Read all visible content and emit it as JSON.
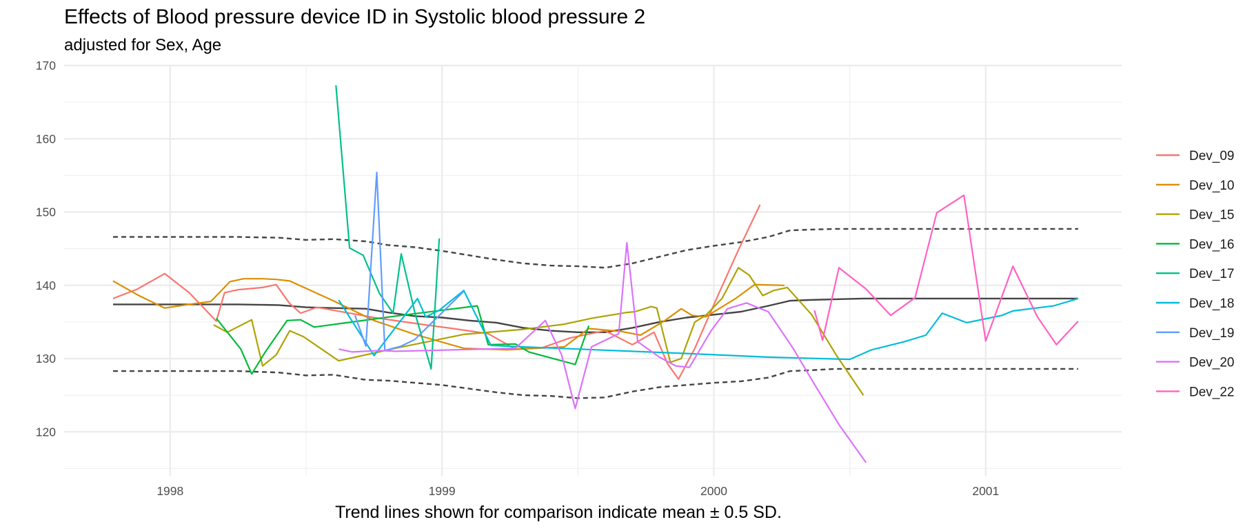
{
  "chart_data": {
    "type": "line",
    "title": "Effects of Blood pressure device ID in Systolic blood pressure 2",
    "subtitle": "adjusted for Sex, Age",
    "caption": "Trend lines shown for comparison indicate mean ± 0.5 SD.",
    "xlabel": "",
    "ylabel": "",
    "xlim": [
      1997.61,
      2001.5
    ],
    "ylim": [
      114,
      170
    ],
    "x_ticks": [
      1998,
      1999,
      2000,
      2001
    ],
    "x_tick_labels": [
      "1998",
      "1999",
      "2000",
      "2001"
    ],
    "y_ticks": [
      120,
      130,
      140,
      150,
      160,
      170
    ],
    "y_tick_labels": [
      "120",
      "130",
      "140",
      "150",
      "160",
      "170"
    ],
    "grid": true,
    "legend_position": "right",
    "series": [
      {
        "name": "Dev_09",
        "color": "#F8766D",
        "x": [
          1997.79,
          1997.88,
          1997.98,
          1998.07,
          1998.17,
          1998.2,
          1998.25,
          1998.34,
          1998.39,
          1998.44,
          1998.48,
          1998.54,
          1998.75,
          1998.94,
          1999.04,
          1999.17,
          1999.27,
          1999.37,
          1999.47,
          1999.6,
          1999.7,
          1999.78,
          1999.83,
          1999.87,
          1999.93,
          2000.01,
          2000.09,
          2000.17
        ],
        "y": [
          138.2,
          139.5,
          141.6,
          139.0,
          135.1,
          139.0,
          139.4,
          139.7,
          140.1,
          137.5,
          136.2,
          137.0,
          135.6,
          134.6,
          134.1,
          133.4,
          131.3,
          131.5,
          132.8,
          133.8,
          131.9,
          133.6,
          129.3,
          127.2,
          131.4,
          138.2,
          144.8,
          151.0
        ]
      },
      {
        "name": "Dev_10",
        "color": "#DB8E00",
        "x": [
          1997.79,
          1997.88,
          1997.98,
          1998.07,
          1998.15,
          1998.22,
          1998.27,
          1998.34,
          1998.39,
          1998.44,
          1998.6,
          1998.75,
          1998.9,
          1999.08,
          1999.24,
          1999.45,
          1999.54,
          1999.66,
          1999.73,
          1999.82,
          1999.88,
          1999.92,
          1999.97,
          2000.08,
          2000.15,
          2000.26
        ],
        "y": [
          140.6,
          138.7,
          136.9,
          137.4,
          137.8,
          140.5,
          140.9,
          140.9,
          140.8,
          140.6,
          137.9,
          135.2,
          133.3,
          131.4,
          131.2,
          131.6,
          134.1,
          133.7,
          133.2,
          135.2,
          136.8,
          135.9,
          135.7,
          138.2,
          140.1,
          140.0
        ]
      },
      {
        "name": "Dev_15",
        "color": "#AEA200",
        "x": [
          1998.16,
          1998.21,
          1998.3,
          1998.34,
          1998.39,
          1998.44,
          1998.49,
          1998.62,
          1998.84,
          1999.08,
          1999.3,
          1999.45,
          1999.55,
          1999.68,
          1999.71,
          1999.77,
          1999.79,
          1999.84,
          1999.88,
          1999.93,
          1999.97,
          2000.03,
          2000.09,
          2000.13,
          2000.18,
          2000.22,
          2000.27,
          2000.36,
          2000.45,
          2000.55
        ],
        "y": [
          134.6,
          133.6,
          135.3,
          129.0,
          130.5,
          133.8,
          133.0,
          129.7,
          131.5,
          133.3,
          134.0,
          134.7,
          135.5,
          136.3,
          136.4,
          137.1,
          136.9,
          129.5,
          130.0,
          135.0,
          135.9,
          138.2,
          142.4,
          141.4,
          138.6,
          139.3,
          139.7,
          136.0,
          130.5,
          125.0
        ]
      },
      {
        "name": "Dev_16",
        "color": "#00BA38",
        "x": [
          1998.17,
          1998.26,
          1998.3,
          1998.35,
          1998.43,
          1998.48,
          1998.53,
          1998.85,
          1999.13,
          1999.17,
          1999.27,
          1999.32,
          1999.39,
          1999.49,
          1999.54
        ],
        "y": [
          135.5,
          131.3,
          127.9,
          130.9,
          135.2,
          135.3,
          134.3,
          135.9,
          137.2,
          131.9,
          132.0,
          130.9,
          130.2,
          129.2,
          134.5
        ]
      },
      {
        "name": "Dev_17",
        "color": "#00C08B",
        "x": [
          1998.61,
          1998.66,
          1998.71,
          1998.77,
          1998.82,
          1998.85,
          1998.9,
          1998.96,
          1998.99
        ],
        "y": [
          167.3,
          145.1,
          144.1,
          138.9,
          136.2,
          144.3,
          136.3,
          128.6,
          146.4
        ]
      },
      {
        "name": "Dev_18",
        "color": "#00BCD8",
        "x": [
          1998.62,
          1998.75,
          1998.91,
          1998.94,
          1998.99,
          1999.08,
          1999.18,
          1999.3,
          1999.5,
          1999.9,
          2000.2,
          2000.5,
          2000.58,
          2000.7,
          2000.78,
          2000.84,
          2000.93,
          2001.06,
          2001.1,
          2001.25,
          2001.34
        ],
        "y": [
          138.0,
          130.4,
          138.2,
          135.7,
          136.6,
          139.3,
          131.8,
          131.6,
          131.3,
          130.7,
          130.2,
          129.9,
          131.2,
          132.3,
          133.2,
          136.2,
          134.9,
          135.9,
          136.5,
          137.2,
          138.2
        ]
      },
      {
        "name": "Dev_19",
        "color": "#619CFF",
        "x": [
          1998.68,
          1998.72,
          1998.76,
          1998.79,
          1998.85,
          1998.9,
          1999.08
        ],
        "y": [
          135.9,
          131.7,
          155.4,
          131.1,
          131.7,
          132.6,
          139.2
        ]
      },
      {
        "name": "Dev_20",
        "color": "#DB72FB",
        "x": [
          1998.62,
          1998.67,
          1998.77,
          1998.83,
          1999.27,
          1999.38,
          1999.44,
          1999.49,
          1999.55,
          1999.65,
          1999.68,
          1999.72,
          1999.8,
          1999.86,
          1999.91,
          1999.99,
          2000.05,
          2000.12,
          2000.2,
          2000.29,
          2000.37,
          2000.46,
          2000.56
        ],
        "y": [
          131.3,
          130.9,
          131.1,
          131.0,
          131.4,
          135.2,
          130.5,
          123.2,
          131.6,
          133.4,
          145.8,
          132.3,
          130.2,
          129.0,
          128.8,
          133.8,
          136.8,
          137.6,
          136.4,
          131.5,
          126.5,
          121.0,
          115.8
        ]
      },
      {
        "name": "Dev_22",
        "color": "#FF61C3",
        "x": [
          2000.37,
          2000.4,
          2000.46,
          2000.56,
          2000.65,
          2000.74,
          2000.82,
          2000.92,
          2001.0,
          2001.1,
          2001.19,
          2001.26,
          2001.34
        ],
        "y": [
          136.6,
          132.5,
          142.4,
          139.5,
          135.9,
          138.3,
          149.9,
          152.3,
          132.4,
          142.6,
          135.7,
          131.9,
          135.1
        ]
      },
      {
        "name": "mean",
        "color": "#444444",
        "dashed": false,
        "x": [
          1997.79,
          1997.95,
          1998.1,
          1998.25,
          1998.4,
          1998.5,
          1998.6,
          1998.72,
          1998.8,
          1998.9,
          1999.0,
          1999.1,
          1999.2,
          1999.3,
          1999.4,
          1999.5,
          1999.6,
          1999.7,
          1999.8,
          1999.9,
          2000.0,
          2000.1,
          2000.2,
          2000.28,
          2000.35,
          2000.45,
          2000.55,
          2000.7,
          2000.85,
          2001.0,
          2001.2,
          2001.34
        ],
        "y": [
          137.4,
          137.4,
          137.4,
          137.4,
          137.3,
          137.0,
          136.9,
          136.8,
          136.3,
          135.8,
          135.6,
          135.2,
          134.9,
          134.2,
          133.8,
          133.6,
          133.6,
          134.2,
          135.0,
          135.6,
          136.0,
          136.4,
          137.2,
          137.9,
          138.0,
          138.1,
          138.2,
          138.2,
          138.2,
          138.2,
          138.2,
          138.2
        ]
      },
      {
        "name": "mean + 0.5 SD",
        "color": "#444444",
        "dashed": true,
        "x": [
          1997.79,
          1997.95,
          1998.1,
          1998.25,
          1998.4,
          1998.5,
          1998.6,
          1998.72,
          1998.8,
          1998.9,
          1999.0,
          1999.1,
          1999.2,
          1999.3,
          1999.4,
          1999.5,
          1999.6,
          1999.7,
          1999.8,
          1999.9,
          2000.0,
          2000.1,
          2000.2,
          2000.28,
          2000.35,
          2000.45,
          2000.55,
          2000.7,
          2000.85,
          2001.0,
          2001.2,
          2001.34
        ],
        "y": [
          146.6,
          146.6,
          146.6,
          146.6,
          146.5,
          146.2,
          146.3,
          146.0,
          145.5,
          145.2,
          144.7,
          144.1,
          143.5,
          143.0,
          142.7,
          142.6,
          142.4,
          143.0,
          143.9,
          144.8,
          145.4,
          145.9,
          146.6,
          147.5,
          147.6,
          147.7,
          147.7,
          147.7,
          147.7,
          147.7,
          147.7,
          147.7
        ]
      },
      {
        "name": "mean - 0.5 SD",
        "color": "#444444",
        "dashed": true,
        "x": [
          1997.79,
          1997.95,
          1998.1,
          1998.25,
          1998.4,
          1998.5,
          1998.6,
          1998.72,
          1998.8,
          1998.9,
          1999.0,
          1999.1,
          1999.2,
          1999.3,
          1999.4,
          1999.5,
          1999.6,
          1999.7,
          1999.8,
          1999.9,
          2000.0,
          2000.1,
          2000.2,
          2000.28,
          2000.35,
          2000.45,
          2000.55,
          2000.7,
          2000.85,
          2001.0,
          2001.2,
          2001.34
        ],
        "y": [
          128.3,
          128.3,
          128.3,
          128.3,
          128.1,
          127.7,
          127.8,
          127.1,
          127.0,
          126.7,
          126.4,
          125.9,
          125.4,
          125.0,
          124.9,
          124.6,
          124.7,
          125.5,
          126.1,
          126.4,
          126.7,
          126.9,
          127.4,
          128.3,
          128.4,
          128.6,
          128.6,
          128.6,
          128.6,
          128.6,
          128.6,
          128.6
        ]
      }
    ]
  }
}
